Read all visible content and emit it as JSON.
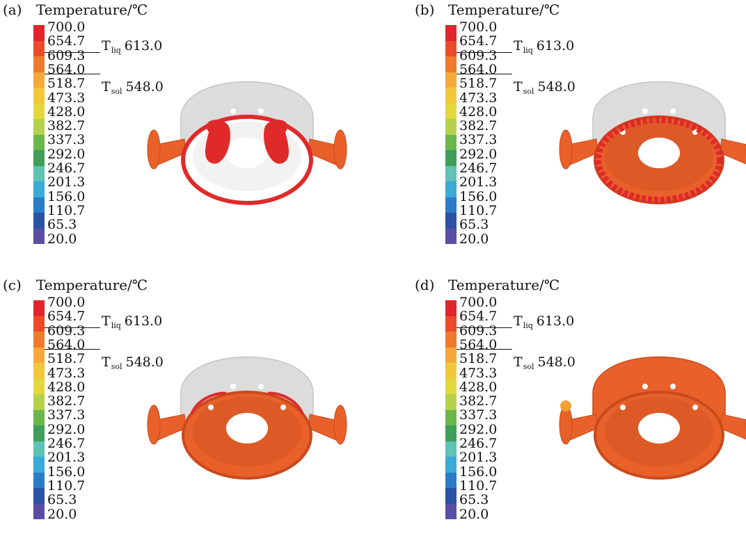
{
  "legend": {
    "title": "Temperature/℃",
    "ticks": [
      "700.0",
      "654.7",
      "609.3",
      "564.0",
      "518.7",
      "473.3",
      "428.0",
      "382.7",
      "337.3",
      "292.0",
      "246.7",
      "201.3",
      "156.0",
      "110.7",
      "65.3",
      "20.0"
    ],
    "colors": [
      "#e0262c",
      "#ec4a2a",
      "#f07a2c",
      "#f6a83a",
      "#f2c73a",
      "#e2d83c",
      "#b6d14a",
      "#6ab84a",
      "#3e9e5a",
      "#5ec2b4",
      "#3aaad8",
      "#2a7cc8",
      "#2c52a6",
      "#5a4ea4",
      "#8a5aaa",
      "#a855aa"
    ],
    "t_liq": {
      "symbol": "T",
      "sub": "liq",
      "value": "613.0",
      "color": "#111111"
    },
    "t_sol": {
      "symbol": "T",
      "sub": "sol",
      "value": "548.0",
      "color": "#111111"
    }
  },
  "panels": [
    {
      "label": "(a)",
      "state": "early"
    },
    {
      "label": "(b)",
      "state": "mid"
    },
    {
      "label": "(c)",
      "state": "late"
    },
    {
      "label": "(d)",
      "state": "solid"
    }
  ],
  "render_colors": {
    "mold": "#dcdcdc",
    "hot": "#e02a2a",
    "casting": "#e8612a",
    "casting_dark": "#c94a1c",
    "hole": "#ffffff"
  }
}
